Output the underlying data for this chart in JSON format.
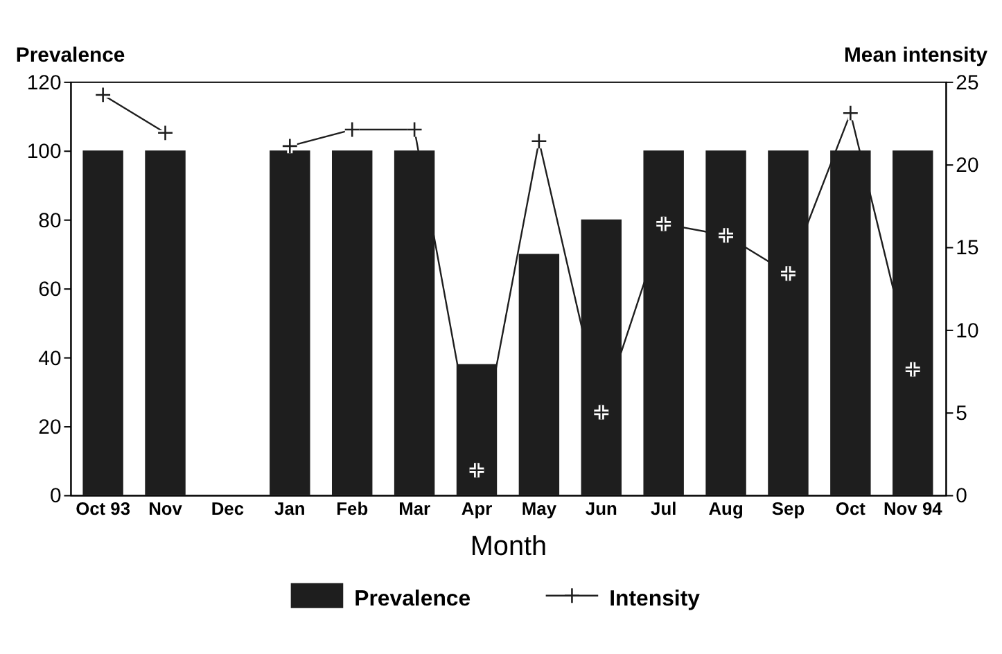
{
  "chart_data": {
    "type": "bar",
    "xlabel": "Month",
    "ylabel": "Prevalence",
    "y2label": "Mean intensity",
    "categories": [
      "Oct 93",
      "Nov",
      "Dec",
      "Jan",
      "Feb",
      "Mar",
      "Apr",
      "May",
      "Jun",
      "Jul",
      "Aug",
      "Sep",
      "Oct",
      "Nov 94"
    ],
    "series": [
      {
        "name": "Prevalence",
        "color": "#1e1e1e",
        "values": [
          100,
          100,
          null,
          100,
          100,
          100,
          38,
          70,
          80,
          100,
          100,
          100,
          100,
          100
        ]
      },
      {
        "name": "Intensity",
        "type": "line",
        "axis": "y2",
        "color": "#1e1e1e",
        "marker": "cross",
        "line_style": "solid",
        "values": [
          24.2,
          21.9,
          null,
          21.1,
          22.1,
          22.1,
          1.5,
          21.4,
          5.0,
          16.4,
          15.7,
          13.4,
          23.1,
          7.6
        ]
      }
    ],
    "ylim": [
      0,
      120
    ],
    "yticks": [
      0,
      20,
      40,
      60,
      80,
      100,
      120
    ],
    "y2lim": [
      0,
      25
    ],
    "y2ticks": [
      0,
      5,
      10,
      15,
      20,
      25
    ],
    "legend": "bottom",
    "grid": false
  }
}
